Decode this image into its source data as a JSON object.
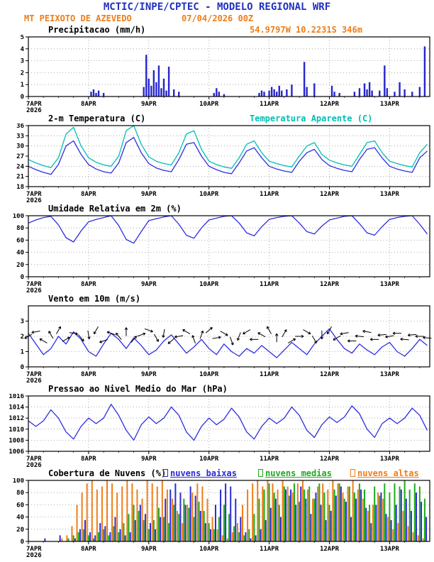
{
  "header": {
    "title": "MCTIC/INPE/CPTEC - MODELO REGIONAL WRF",
    "station": "MT PEIXOTO DE AZEVEDO",
    "run_datetime": "07/04/2026 00Z",
    "location": "54.9797W 10.2231S 346m"
  },
  "colors": {
    "title_blue": "#2030c0",
    "orange": "#ef7d18",
    "cyan": "#00bfb4",
    "line_blue": "#2e2ee0",
    "bar_blue": "#2626cc",
    "green": "#1faa1f",
    "black": "#000000"
  },
  "x_axis": {
    "max_hours": 160,
    "ticks": [
      {
        "h": 0,
        "label": "7APR",
        "sub": "2026"
      },
      {
        "h": 24,
        "label": "8APR"
      },
      {
        "h": 48,
        "label": "9APR"
      },
      {
        "h": 72,
        "label": "10APR"
      },
      {
        "h": 96,
        "label": "11APR"
      },
      {
        "h": 120,
        "label": "12APR"
      },
      {
        "h": 144,
        "label": "13APR"
      }
    ]
  },
  "chart_data": [
    {
      "id": "precipitation",
      "type": "bar",
      "title": "Precipitacao (mm/h)",
      "ylabel": "mm/h",
      "ylim": [
        0,
        5
      ],
      "yticks": [
        0,
        1,
        2,
        3,
        4,
        5
      ],
      "bar_color": "#2626cc",
      "points": [
        [
          25,
          0.4
        ],
        [
          26,
          0.6
        ],
        [
          27,
          0.3
        ],
        [
          28,
          0.5
        ],
        [
          30,
          0.3
        ],
        [
          46,
          0.8
        ],
        [
          47,
          3.5
        ],
        [
          48,
          1.5
        ],
        [
          49,
          0.9
        ],
        [
          50,
          2.2
        ],
        [
          51,
          1.2
        ],
        [
          52,
          2.6
        ],
        [
          53,
          0.7
        ],
        [
          54,
          1.5
        ],
        [
          55,
          0.5
        ],
        [
          56,
          2.5
        ],
        [
          58,
          0.6
        ],
        [
          60,
          0.4
        ],
        [
          74,
          0.3
        ],
        [
          75,
          0.7
        ],
        [
          76,
          0.4
        ],
        [
          78,
          0.2
        ],
        [
          92,
          0.3
        ],
        [
          93,
          0.5
        ],
        [
          94,
          0.4
        ],
        [
          96,
          0.5
        ],
        [
          97,
          0.8
        ],
        [
          98,
          0.6
        ],
        [
          99,
          0.4
        ],
        [
          100,
          0.9
        ],
        [
          101,
          0.5
        ],
        [
          103,
          0.6
        ],
        [
          105,
          1.0
        ],
        [
          110,
          2.9
        ],
        [
          111,
          0.8
        ],
        [
          114,
          1.1
        ],
        [
          121,
          0.9
        ],
        [
          122,
          0.4
        ],
        [
          124,
          0.3
        ],
        [
          130,
          0.4
        ],
        [
          132,
          0.7
        ],
        [
          134,
          1.1
        ],
        [
          135,
          0.6
        ],
        [
          136,
          1.2
        ],
        [
          137,
          0.5
        ],
        [
          140,
          0.5
        ],
        [
          142,
          2.6
        ],
        [
          143,
          0.7
        ],
        [
          146,
          0.4
        ],
        [
          148,
          1.2
        ],
        [
          150,
          0.6
        ],
        [
          153,
          0.4
        ],
        [
          156,
          0.8
        ],
        [
          158,
          4.2
        ]
      ]
    },
    {
      "id": "temperature",
      "type": "line",
      "title": "2-m Temperatura (C)",
      "ylim": [
        18,
        36
      ],
      "yticks": [
        18,
        21,
        24,
        27,
        30,
        33,
        36
      ],
      "step_hours": 3,
      "series": [
        {
          "name": "2-m Temperatura (C)",
          "color": "#2e2ee0",
          "values": [
            24.0,
            23.0,
            22.2,
            21.6,
            24.5,
            30.0,
            31.5,
            27.5,
            24.5,
            23.2,
            22.4,
            22.0,
            25.0,
            31.0,
            32.5,
            28.0,
            24.8,
            23.5,
            22.8,
            22.4,
            26.0,
            30.5,
            31.0,
            27.0,
            24.0,
            23.0,
            22.2,
            21.8,
            25.0,
            28.5,
            29.5,
            26.5,
            24.0,
            23.2,
            22.6,
            22.2,
            25.5,
            28.0,
            29.0,
            26.0,
            24.2,
            23.4,
            22.8,
            22.4,
            26.0,
            29.0,
            29.5,
            26.5,
            24.0,
            23.2,
            22.6,
            22.2,
            26.5,
            28.5
          ]
        },
        {
          "name": "Temperatura Aparente (C)",
          "color": "#00bfb4",
          "values": [
            26.0,
            25.0,
            24.2,
            23.6,
            26.5,
            33.5,
            35.5,
            30.0,
            26.5,
            25.2,
            24.4,
            24.0,
            27.0,
            34.5,
            36.0,
            30.5,
            26.8,
            25.5,
            24.8,
            24.4,
            28.0,
            33.5,
            34.5,
            29.0,
            25.5,
            24.5,
            23.8,
            23.4,
            26.5,
            30.5,
            31.5,
            28.0,
            25.5,
            24.8,
            24.2,
            23.8,
            27.0,
            30.0,
            31.0,
            27.5,
            25.8,
            25.0,
            24.4,
            24.0,
            27.5,
            31.0,
            31.5,
            28.0,
            25.5,
            24.8,
            24.2,
            23.8,
            28.0,
            30.5
          ]
        }
      ]
    },
    {
      "id": "humidity",
      "type": "line",
      "title": "Umidade Relativa em 2m (%)",
      "ylim": [
        0,
        100
      ],
      "yticks": [
        0,
        20,
        40,
        60,
        80,
        100
      ],
      "step_hours": 3,
      "series": [
        {
          "name": "Umidade Relativa em 2m (%)",
          "color": "#2e2ee0",
          "values": [
            88,
            93,
            97,
            99,
            85,
            64,
            57,
            75,
            90,
            94,
            97,
            100,
            84,
            61,
            55,
            74,
            92,
            95,
            98,
            100,
            86,
            68,
            63,
            80,
            93,
            96,
            99,
            100,
            88,
            72,
            67,
            82,
            94,
            97,
            99,
            100,
            88,
            74,
            70,
            83,
            93,
            96,
            99,
            100,
            87,
            72,
            68,
            82,
            94,
            97,
            99,
            100,
            86,
            70
          ]
        }
      ]
    },
    {
      "id": "wind",
      "type": "line",
      "title": "Vento em 10m (m/s)",
      "ylim": [
        0,
        4
      ],
      "yticks": [
        0,
        1,
        2,
        3
      ],
      "step_hours": 3,
      "series": [
        {
          "name": "Vento em 10m (m/s)",
          "color": "#2e2ee0",
          "values": [
            2.2,
            1.5,
            0.8,
            1.2,
            2.0,
            1.5,
            2.3,
            1.8,
            1.0,
            0.7,
            1.5,
            2.2,
            1.8,
            1.2,
            1.9,
            1.4,
            0.8,
            1.1,
            1.7,
            2.1,
            1.5,
            0.9,
            1.3,
            1.8,
            1.2,
            0.8,
            1.5,
            1.0,
            0.7,
            1.2,
            0.9,
            1.4,
            1.0,
            0.6,
            1.1,
            1.6,
            1.2,
            0.8,
            1.5,
            2.0,
            2.5,
            1.8,
            1.2,
            0.9,
            1.5,
            1.1,
            0.8,
            1.3,
            1.6,
            1.0,
            0.7,
            1.2,
            1.8,
            1.4
          ]
        }
      ],
      "arrows": {
        "color": "#000000",
        "items": [
          [
            0,
            2.0,
            210
          ],
          [
            3,
            2.3,
            190
          ],
          [
            6,
            1.7,
            150
          ],
          [
            9,
            2.1,
            120
          ],
          [
            12,
            2.4,
            60
          ],
          [
            15,
            1.8,
            30
          ],
          [
            18,
            2.2,
            350
          ],
          [
            21,
            1.9,
            310
          ],
          [
            24,
            2.1,
            280
          ],
          [
            27,
            2.4,
            240
          ],
          [
            30,
            1.7,
            200
          ],
          [
            33,
            2.2,
            160
          ],
          [
            36,
            2.0,
            130
          ],
          [
            39,
            2.3,
            90
          ],
          [
            42,
            1.8,
            50
          ],
          [
            45,
            2.1,
            20
          ],
          [
            48,
            2.4,
            340
          ],
          [
            51,
            1.9,
            300
          ],
          [
            54,
            2.2,
            260
          ],
          [
            57,
            1.7,
            220
          ],
          [
            60,
            2.0,
            190
          ],
          [
            63,
            2.3,
            150
          ],
          [
            66,
            1.8,
            110
          ],
          [
            69,
            2.1,
            70
          ],
          [
            72,
            2.4,
            40
          ],
          [
            75,
            1.9,
            10
          ],
          [
            78,
            2.2,
            330
          ],
          [
            81,
            1.7,
            290
          ],
          [
            84,
            2.0,
            250
          ],
          [
            87,
            2.3,
            210
          ],
          [
            90,
            1.8,
            180
          ],
          [
            93,
            2.1,
            150
          ],
          [
            96,
            2.4,
            120
          ],
          [
            99,
            1.9,
            90
          ],
          [
            102,
            2.2,
            60
          ],
          [
            105,
            1.7,
            30
          ],
          [
            108,
            2.0,
            0
          ],
          [
            111,
            2.3,
            330
          ],
          [
            114,
            1.8,
            300
          ],
          [
            117,
            2.1,
            270
          ],
          [
            120,
            2.4,
            240
          ],
          [
            123,
            1.9,
            210
          ],
          [
            126,
            2.2,
            190
          ],
          [
            129,
            1.7,
            180
          ],
          [
            132,
            2.0,
            175
          ],
          [
            135,
            2.3,
            170
          ],
          [
            138,
            1.8,
            180
          ],
          [
            141,
            2.1,
            185
          ],
          [
            144,
            2.0,
            190
          ],
          [
            147,
            2.2,
            180
          ],
          [
            150,
            1.8,
            175
          ],
          [
            153,
            2.1,
            185
          ],
          [
            156,
            2.0,
            180
          ],
          [
            159,
            1.9,
            175
          ]
        ]
      }
    },
    {
      "id": "pressure",
      "type": "line",
      "title": "Pressao ao Nivel Medio do Mar (hPa)",
      "ylim": [
        1006,
        1016
      ],
      "yticks": [
        1006,
        1008,
        1010,
        1012,
        1014,
        1016
      ],
      "step_hours": 3,
      "series": [
        {
          "name": "Pressao ao Nivel Medio do Mar (hPa)",
          "color": "#2e2ee0",
          "values": [
            1011.5,
            1010.5,
            1011.5,
            1013.5,
            1012.0,
            1009.5,
            1008.2,
            1010.5,
            1012.0,
            1011.0,
            1012.0,
            1014.5,
            1012.5,
            1009.8,
            1008.0,
            1010.8,
            1012.2,
            1011.0,
            1012.0,
            1014.0,
            1012.5,
            1009.5,
            1008.0,
            1010.5,
            1012.0,
            1010.8,
            1011.8,
            1013.8,
            1012.2,
            1009.5,
            1008.2,
            1010.5,
            1012.0,
            1011.0,
            1012.0,
            1014.0,
            1012.5,
            1009.8,
            1008.5,
            1010.8,
            1012.2,
            1011.2,
            1012.2,
            1014.2,
            1012.8,
            1010.0,
            1008.5,
            1011.0,
            1012.0,
            1011.0,
            1012.0,
            1013.8,
            1012.5,
            1009.8
          ]
        }
      ]
    },
    {
      "id": "clouds",
      "type": "bar",
      "title": "Cobertura de Nuvens (%)",
      "ylim": [
        0,
        100
      ],
      "yticks": [
        0,
        20,
        40,
        60,
        80,
        100
      ],
      "step_hours": 2,
      "series": [
        {
          "name": "nuvens baixas",
          "color": "#2b2bd6",
          "values": [
            0,
            0,
            0,
            5,
            0,
            0,
            10,
            0,
            0,
            5,
            20,
            35,
            15,
            10,
            30,
            25,
            15,
            40,
            20,
            10,
            15,
            35,
            60,
            45,
            30,
            20,
            40,
            70,
            85,
            95,
            80,
            60,
            90,
            75,
            50,
            30,
            20,
            60,
            85,
            95,
            90,
            70,
            40,
            15,
            5,
            10,
            20,
            35,
            55,
            70,
            40,
            85,
            85,
            60,
            90,
            70,
            45,
            80,
            60,
            35,
            50,
            75,
            90,
            65,
            40,
            70,
            85,
            55,
            30,
            60,
            80,
            45,
            35,
            60,
            85,
            70,
            50,
            80,
            65,
            40
          ]
        },
        {
          "name": "nuvens medias",
          "color": "#1faa1f",
          "values": [
            0,
            0,
            0,
            0,
            0,
            0,
            0,
            0,
            5,
            10,
            15,
            20,
            10,
            5,
            15,
            20,
            10,
            25,
            15,
            30,
            45,
            60,
            50,
            35,
            20,
            35,
            55,
            40,
            30,
            60,
            45,
            70,
            55,
            40,
            65,
            50,
            30,
            20,
            40,
            60,
            45,
            25,
            15,
            10,
            20,
            45,
            70,
            85,
            95,
            80,
            60,
            90,
            75,
            95,
            65,
            85,
            90,
            70,
            95,
            80,
            60,
            85,
            95,
            70,
            90,
            80,
            95,
            85,
            60,
            90,
            75,
            95,
            80,
            95,
            90,
            100,
            85,
            95,
            90,
            70
          ]
        },
        {
          "name": "nuvens altas",
          "color": "#ef7d18",
          "values": [
            0,
            0,
            0,
            0,
            0,
            0,
            0,
            5,
            10,
            25,
            60,
            80,
            95,
            100,
            85,
            90,
            100,
            95,
            80,
            90,
            100,
            95,
            85,
            70,
            100,
            95,
            90,
            100,
            85,
            70,
            50,
            30,
            60,
            80,
            95,
            90,
            70,
            40,
            20,
            10,
            5,
            15,
            30,
            60,
            85,
            95,
            100,
            90,
            100,
            95,
            85,
            100,
            90,
            80,
            95,
            100,
            85,
            70,
            90,
            95,
            85,
            100,
            95,
            80,
            90,
            100,
            85,
            70,
            50,
            60,
            80,
            70,
            40,
            20,
            30,
            50,
            25,
            15,
            10,
            5
          ]
        }
      ]
    }
  ]
}
